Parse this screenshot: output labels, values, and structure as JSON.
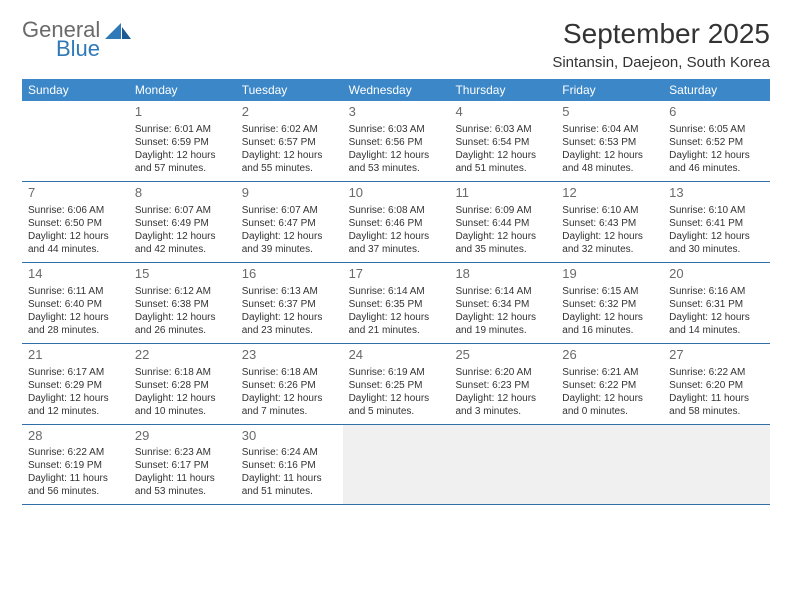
{
  "brand": {
    "general": "General",
    "blue": "Blue"
  },
  "title": {
    "month": "September 2025",
    "location": "Sintansin, Daejeon, South Korea"
  },
  "colors": {
    "header_bg": "#3b87c8",
    "header_text": "#ffffff",
    "row_border": "#2f6ea8",
    "text": "#333333",
    "muted": "#6a6a6a",
    "brand_blue": "#2f79b9",
    "background": "#ffffff",
    "shade": "#f0f0f0"
  },
  "typography": {
    "title_fontsize": 28,
    "location_fontsize": 15,
    "header_fontsize": 12,
    "daynum_fontsize": 13,
    "body_fontsize": 10,
    "logo_fontsize": 22
  },
  "weekdays": [
    "Sunday",
    "Monday",
    "Tuesday",
    "Wednesday",
    "Thursday",
    "Friday",
    "Saturday"
  ],
  "weeks": [
    [
      {
        "blank": true
      },
      {
        "n": "1",
        "sr": "Sunrise: 6:01 AM",
        "ss": "Sunset: 6:59 PM",
        "dl": "Daylight: 12 hours and 57 minutes."
      },
      {
        "n": "2",
        "sr": "Sunrise: 6:02 AM",
        "ss": "Sunset: 6:57 PM",
        "dl": "Daylight: 12 hours and 55 minutes."
      },
      {
        "n": "3",
        "sr": "Sunrise: 6:03 AM",
        "ss": "Sunset: 6:56 PM",
        "dl": "Daylight: 12 hours and 53 minutes."
      },
      {
        "n": "4",
        "sr": "Sunrise: 6:03 AM",
        "ss": "Sunset: 6:54 PM",
        "dl": "Daylight: 12 hours and 51 minutes."
      },
      {
        "n": "5",
        "sr": "Sunrise: 6:04 AM",
        "ss": "Sunset: 6:53 PM",
        "dl": "Daylight: 12 hours and 48 minutes."
      },
      {
        "n": "6",
        "sr": "Sunrise: 6:05 AM",
        "ss": "Sunset: 6:52 PM",
        "dl": "Daylight: 12 hours and 46 minutes."
      }
    ],
    [
      {
        "n": "7",
        "sr": "Sunrise: 6:06 AM",
        "ss": "Sunset: 6:50 PM",
        "dl": "Daylight: 12 hours and 44 minutes."
      },
      {
        "n": "8",
        "sr": "Sunrise: 6:07 AM",
        "ss": "Sunset: 6:49 PM",
        "dl": "Daylight: 12 hours and 42 minutes."
      },
      {
        "n": "9",
        "sr": "Sunrise: 6:07 AM",
        "ss": "Sunset: 6:47 PM",
        "dl": "Daylight: 12 hours and 39 minutes."
      },
      {
        "n": "10",
        "sr": "Sunrise: 6:08 AM",
        "ss": "Sunset: 6:46 PM",
        "dl": "Daylight: 12 hours and 37 minutes."
      },
      {
        "n": "11",
        "sr": "Sunrise: 6:09 AM",
        "ss": "Sunset: 6:44 PM",
        "dl": "Daylight: 12 hours and 35 minutes."
      },
      {
        "n": "12",
        "sr": "Sunrise: 6:10 AM",
        "ss": "Sunset: 6:43 PM",
        "dl": "Daylight: 12 hours and 32 minutes."
      },
      {
        "n": "13",
        "sr": "Sunrise: 6:10 AM",
        "ss": "Sunset: 6:41 PM",
        "dl": "Daylight: 12 hours and 30 minutes."
      }
    ],
    [
      {
        "n": "14",
        "sr": "Sunrise: 6:11 AM",
        "ss": "Sunset: 6:40 PM",
        "dl": "Daylight: 12 hours and 28 minutes."
      },
      {
        "n": "15",
        "sr": "Sunrise: 6:12 AM",
        "ss": "Sunset: 6:38 PM",
        "dl": "Daylight: 12 hours and 26 minutes."
      },
      {
        "n": "16",
        "sr": "Sunrise: 6:13 AM",
        "ss": "Sunset: 6:37 PM",
        "dl": "Daylight: 12 hours and 23 minutes."
      },
      {
        "n": "17",
        "sr": "Sunrise: 6:14 AM",
        "ss": "Sunset: 6:35 PM",
        "dl": "Daylight: 12 hours and 21 minutes."
      },
      {
        "n": "18",
        "sr": "Sunrise: 6:14 AM",
        "ss": "Sunset: 6:34 PM",
        "dl": "Daylight: 12 hours and 19 minutes."
      },
      {
        "n": "19",
        "sr": "Sunrise: 6:15 AM",
        "ss": "Sunset: 6:32 PM",
        "dl": "Daylight: 12 hours and 16 minutes."
      },
      {
        "n": "20",
        "sr": "Sunrise: 6:16 AM",
        "ss": "Sunset: 6:31 PM",
        "dl": "Daylight: 12 hours and 14 minutes."
      }
    ],
    [
      {
        "n": "21",
        "sr": "Sunrise: 6:17 AM",
        "ss": "Sunset: 6:29 PM",
        "dl": "Daylight: 12 hours and 12 minutes."
      },
      {
        "n": "22",
        "sr": "Sunrise: 6:18 AM",
        "ss": "Sunset: 6:28 PM",
        "dl": "Daylight: 12 hours and 10 minutes."
      },
      {
        "n": "23",
        "sr": "Sunrise: 6:18 AM",
        "ss": "Sunset: 6:26 PM",
        "dl": "Daylight: 12 hours and 7 minutes."
      },
      {
        "n": "24",
        "sr": "Sunrise: 6:19 AM",
        "ss": "Sunset: 6:25 PM",
        "dl": "Daylight: 12 hours and 5 minutes."
      },
      {
        "n": "25",
        "sr": "Sunrise: 6:20 AM",
        "ss": "Sunset: 6:23 PM",
        "dl": "Daylight: 12 hours and 3 minutes."
      },
      {
        "n": "26",
        "sr": "Sunrise: 6:21 AM",
        "ss": "Sunset: 6:22 PM",
        "dl": "Daylight: 12 hours and 0 minutes."
      },
      {
        "n": "27",
        "sr": "Sunrise: 6:22 AM",
        "ss": "Sunset: 6:20 PM",
        "dl": "Daylight: 11 hours and 58 minutes."
      }
    ],
    [
      {
        "n": "28",
        "sr": "Sunrise: 6:22 AM",
        "ss": "Sunset: 6:19 PM",
        "dl": "Daylight: 11 hours and 56 minutes."
      },
      {
        "n": "29",
        "sr": "Sunrise: 6:23 AM",
        "ss": "Sunset: 6:17 PM",
        "dl": "Daylight: 11 hours and 53 minutes."
      },
      {
        "n": "30",
        "sr": "Sunrise: 6:24 AM",
        "ss": "Sunset: 6:16 PM",
        "dl": "Daylight: 11 hours and 51 minutes."
      },
      {
        "shade": true
      },
      {
        "shade": true
      },
      {
        "shade": true
      },
      {
        "shade": true
      }
    ]
  ]
}
